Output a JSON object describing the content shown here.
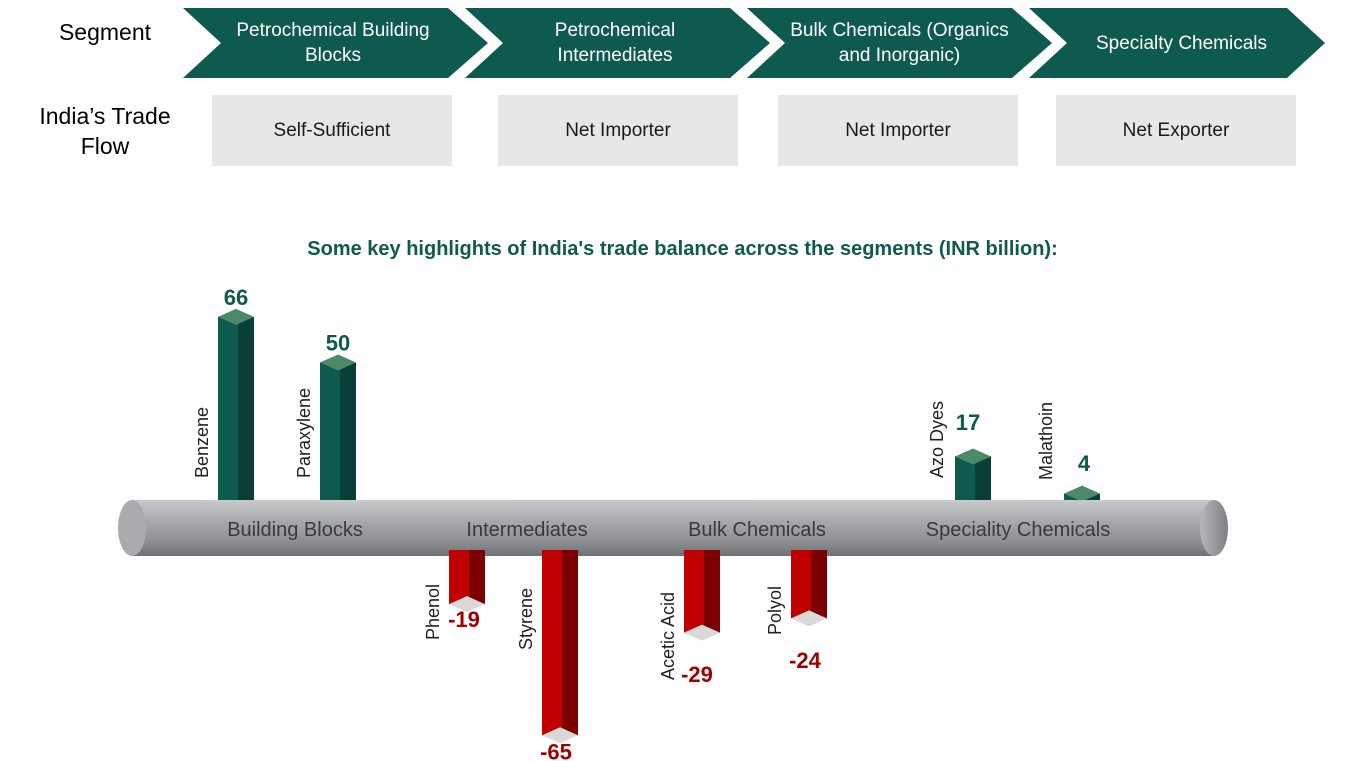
{
  "header": {
    "segment_label": "Segment",
    "trade_flow_label_line1": "India’s Trade",
    "trade_flow_label_line2": "Flow"
  },
  "segments": [
    {
      "line1": "Petrochemical Building",
      "line2": "Blocks",
      "flow": "Self-Sufficient"
    },
    {
      "line1": "Petrochemical",
      "line2": "Intermediates",
      "flow": "Net Importer"
    },
    {
      "line1": "Bulk Chemicals (Organics",
      "line2": "and Inorganic)",
      "flow": "Net Importer"
    },
    {
      "line1": "Specialty Chemicals",
      "line2": "",
      "flow": "Net Exporter"
    }
  ],
  "colors": {
    "segment_fill": "#0f5a4e",
    "flow_box": "#e6e7e8",
    "positive_bar": "#0f5a4e",
    "negative_bar": "#c00000",
    "axis_tube": "#9d9fa2"
  },
  "chart_data": {
    "type": "bar",
    "title": "Some key highlights of India's trade balance across the segments (INR billion):",
    "axis_groups": [
      "Building Blocks",
      "Intermediates",
      "Bulk Chemicals",
      "Speciality Chemicals"
    ],
    "categories": [
      "Benzene",
      "Paraxylene",
      "Phenol",
      "Styrene",
      "Acetic Acid",
      "Polyol",
      "Azo Dyes",
      "Malathoin"
    ],
    "values": [
      66,
      50,
      -19,
      -65,
      -29,
      -24,
      17,
      4
    ],
    "value_labels": [
      "66",
      "50",
      "-19",
      "-65",
      "-29",
      "-24",
      "17",
      "4"
    ],
    "groups": [
      "Building Blocks",
      "Building Blocks",
      "Intermediates",
      "Intermediates",
      "Bulk Chemicals",
      "Bulk Chemicals",
      "Speciality Chemicals",
      "Speciality Chemicals"
    ]
  }
}
